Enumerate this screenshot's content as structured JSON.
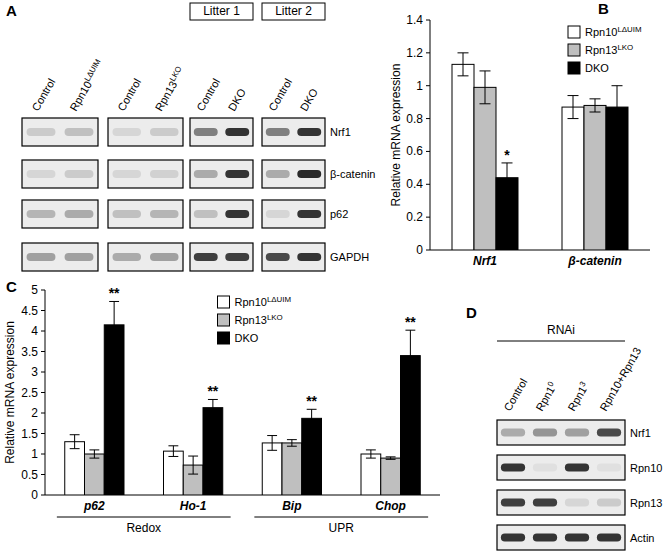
{
  "chart_data": [
    {
      "type": "bar",
      "title": "B",
      "y_label": "Relative mRNA expression",
      "categories": [
        "Nrf1",
        "β-catenin"
      ],
      "series": [
        {
          "name": "Rpn10LΔUIM",
          "color": "#ffffff",
          "values": [
            1.13,
            0.87
          ],
          "errors": [
            0.07,
            0.07
          ]
        },
        {
          "name": "Rpn13LKO",
          "color": "#bfbfbf",
          "values": [
            0.99,
            0.88
          ],
          "errors": [
            0.1,
            0.04
          ]
        },
        {
          "name": "DKO",
          "color": "#000000",
          "values": [
            0.44,
            0.87
          ],
          "errors": [
            0.09,
            0.13
          ],
          "annotations": [
            "*",
            null
          ]
        }
      ],
      "ylim": [
        0,
        1.4
      ],
      "yticks": [
        0,
        0.2,
        0.4,
        0.6,
        0.8,
        1,
        1.2,
        1.4
      ],
      "grid": false,
      "legend": "upper right"
    },
    {
      "type": "bar",
      "title": "C",
      "y_label": "Relative mRNA expression",
      "categories": [
        "p62",
        "Ho-1",
        "Bip",
        "Chop"
      ],
      "series": [
        {
          "name": "Rpn10LΔUIM",
          "color": "#ffffff",
          "values": [
            1.3,
            1.07,
            1.27,
            1.0
          ],
          "errors": [
            0.17,
            0.13,
            0.18,
            0.1
          ]
        },
        {
          "name": "Rpn13LKO",
          "color": "#bfbfbf",
          "values": [
            1.0,
            0.73,
            1.27,
            0.9
          ],
          "errors": [
            0.1,
            0.22,
            0.08,
            0.03
          ]
        },
        {
          "name": "DKO",
          "color": "#000000",
          "values": [
            4.15,
            2.13,
            1.87,
            3.4
          ],
          "errors": [
            0.57,
            0.2,
            0.22,
            0.62
          ],
          "annotations": [
            "**",
            "**",
            "**",
            "**"
          ]
        }
      ],
      "groups": [
        {
          "label": "Redox",
          "categories": [
            "p62",
            "Ho-1"
          ]
        },
        {
          "label": "UPR",
          "categories": [
            "Bip",
            "Chop"
          ]
        }
      ],
      "ylim": [
        0,
        5
      ],
      "yticks": [
        0,
        0.5,
        1,
        1.5,
        2,
        2.5,
        3,
        3.5,
        4,
        4.5,
        5
      ],
      "grid": false,
      "legend": "upper center"
    }
  ],
  "blots": [
    {
      "panel": "A",
      "groups": [
        {
          "header": null,
          "lanes": [
            "Control",
            "Rpn10LΔUIM"
          ]
        },
        {
          "header": null,
          "lanes": [
            "Control",
            "Rpn13LKO"
          ]
        },
        {
          "header": "Litter 1",
          "lanes": [
            "Control",
            "DKO"
          ]
        },
        {
          "header": "Litter 2",
          "lanes": [
            "Control",
            "DKO"
          ]
        }
      ],
      "rows": [
        "Nrf1",
        "β-catenin",
        "p62",
        "GAPDH"
      ],
      "intensity": [
        [
          [
            0.15,
            0.2
          ],
          [
            0.1,
            0.15
          ],
          [
            0.5,
            0.85
          ],
          [
            0.5,
            0.85
          ]
        ],
        [
          [
            0.1,
            0.15
          ],
          [
            0.1,
            0.12
          ],
          [
            0.3,
            0.85
          ],
          [
            0.3,
            0.9
          ]
        ],
        [
          [
            0.25,
            0.3
          ],
          [
            0.2,
            0.25
          ],
          [
            0.2,
            0.85
          ],
          [
            0.1,
            0.85
          ]
        ],
        [
          [
            0.35,
            0.35
          ],
          [
            0.3,
            0.35
          ],
          [
            0.8,
            0.8
          ],
          [
            0.75,
            0.85
          ]
        ]
      ]
    },
    {
      "panel": "D",
      "groups": [
        {
          "header": "RNAi",
          "lanes": [
            "Control",
            "Rpn10",
            "Rpn13",
            "Rpn10+Rpn13"
          ]
        }
      ],
      "rows": [
        "Nrf1",
        "Rpn10",
        "Rpn13",
        "Actin"
      ],
      "intensity": [
        [
          [
            0.3,
            0.4,
            0.35,
            0.75
          ]
        ],
        [
          [
            0.85,
            0.05,
            0.85,
            0.05
          ]
        ],
        [
          [
            0.8,
            0.8,
            0.1,
            0.15
          ]
        ],
        [
          [
            0.85,
            0.85,
            0.85,
            0.85
          ]
        ]
      ]
    }
  ]
}
